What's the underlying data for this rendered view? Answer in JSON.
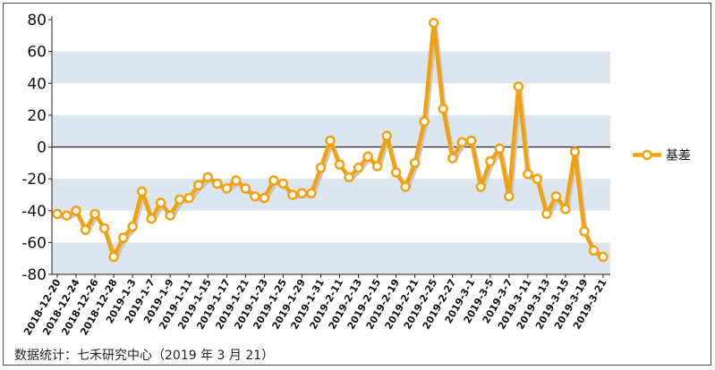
{
  "source_note": "数据统计：七禾研究中心（2019 年 3 月 21）",
  "colors": {
    "line": "#f2a20f",
    "marker_fill": "#ffffff",
    "band": "#dce6f1",
    "zero_line": "#222222",
    "axis": "#222222"
  },
  "chart_data": {
    "type": "line",
    "title": "",
    "xlabel": "",
    "ylabel": "",
    "ylim": [
      -80,
      80
    ],
    "yticks": [
      80,
      60,
      40,
      20,
      0,
      -20,
      -40,
      -60,
      -80
    ],
    "grid": "alternating horizontal bands",
    "legend": {
      "placement": "right",
      "entries": [
        "基差"
      ]
    },
    "x": [
      "2018-12-20",
      "2018-12-21",
      "2018-12-24",
      "2018-12-25",
      "2018-12-26",
      "2018-12-27",
      "2018-12-28",
      "2019-1-2",
      "2019-1-3",
      "2019-1-4",
      "2019-1-7",
      "2019-1-8",
      "2019-1-9",
      "2019-1-10",
      "2019-1-11",
      "2019-1-14",
      "2019-1-15",
      "2019-1-16",
      "2019-1-17",
      "2019-1-18",
      "2019-1-21",
      "2019-1-22",
      "2019-1-23",
      "2019-1-24",
      "2019-1-25",
      "2019-1-28",
      "2019-1-29",
      "2019-1-30",
      "2019-1-31",
      "2019-2-1",
      "2019-2-11",
      "2019-2-12",
      "2019-2-13",
      "2019-2-14",
      "2019-2-15",
      "2019-2-18",
      "2019-2-19",
      "2019-2-20",
      "2019-2-21",
      "2019-2-22",
      "2019-2-25",
      "2019-2-26",
      "2019-2-27",
      "2019-2-28",
      "2019-3-1",
      "2019-3-4",
      "2019-3-5",
      "2019-3-6",
      "2019-3-7",
      "2019-3-8",
      "2019-3-11",
      "2019-3-12",
      "2019-3-13",
      "2019-3-14",
      "2019-3-15",
      "2019-3-18",
      "2019-3-19",
      "2019-3-20",
      "2019-3-21"
    ],
    "x_tick_labels": [
      "2018-12-20",
      "2018-12-24",
      "2018-12-26",
      "2018-12-28",
      "2019-1-3",
      "2019-1-7",
      "2019-1-9",
      "2019-1-11",
      "2019-1-15",
      "2019-1-17",
      "2019-1-21",
      "2019-1-23",
      "2019-1-25",
      "2019-1-29",
      "2019-1-31",
      "2019-2-11",
      "2019-2-13",
      "2019-2-15",
      "2019-2-19",
      "2019-2-21",
      "2019-2-25",
      "2019-2-27",
      "2019-3-1",
      "2019-3-5",
      "2019-3-7",
      "2019-3-11",
      "2019-3-13",
      "2019-3-15",
      "2019-3-19",
      "2019-3-21"
    ],
    "series": [
      {
        "name": "基差",
        "values": [
          -42,
          -43,
          -40,
          -52,
          -42,
          -51,
          -69,
          -57,
          -50,
          -28,
          -45,
          -35,
          -43,
          -33,
          -32,
          -24,
          -19,
          -23,
          -26,
          -21,
          -26,
          -31,
          -32,
          -21,
          -23,
          -30,
          -29,
          -29,
          -13,
          4,
          -11,
          -19,
          -13,
          -6,
          -12,
          7,
          -16,
          -25,
          -10,
          16,
          78,
          24,
          -7,
          3,
          4,
          -25,
          -9,
          -1,
          -31,
          38,
          -17,
          -20,
          -42,
          -31,
          -39,
          -3,
          -53,
          -65,
          -69
        ]
      }
    ]
  }
}
